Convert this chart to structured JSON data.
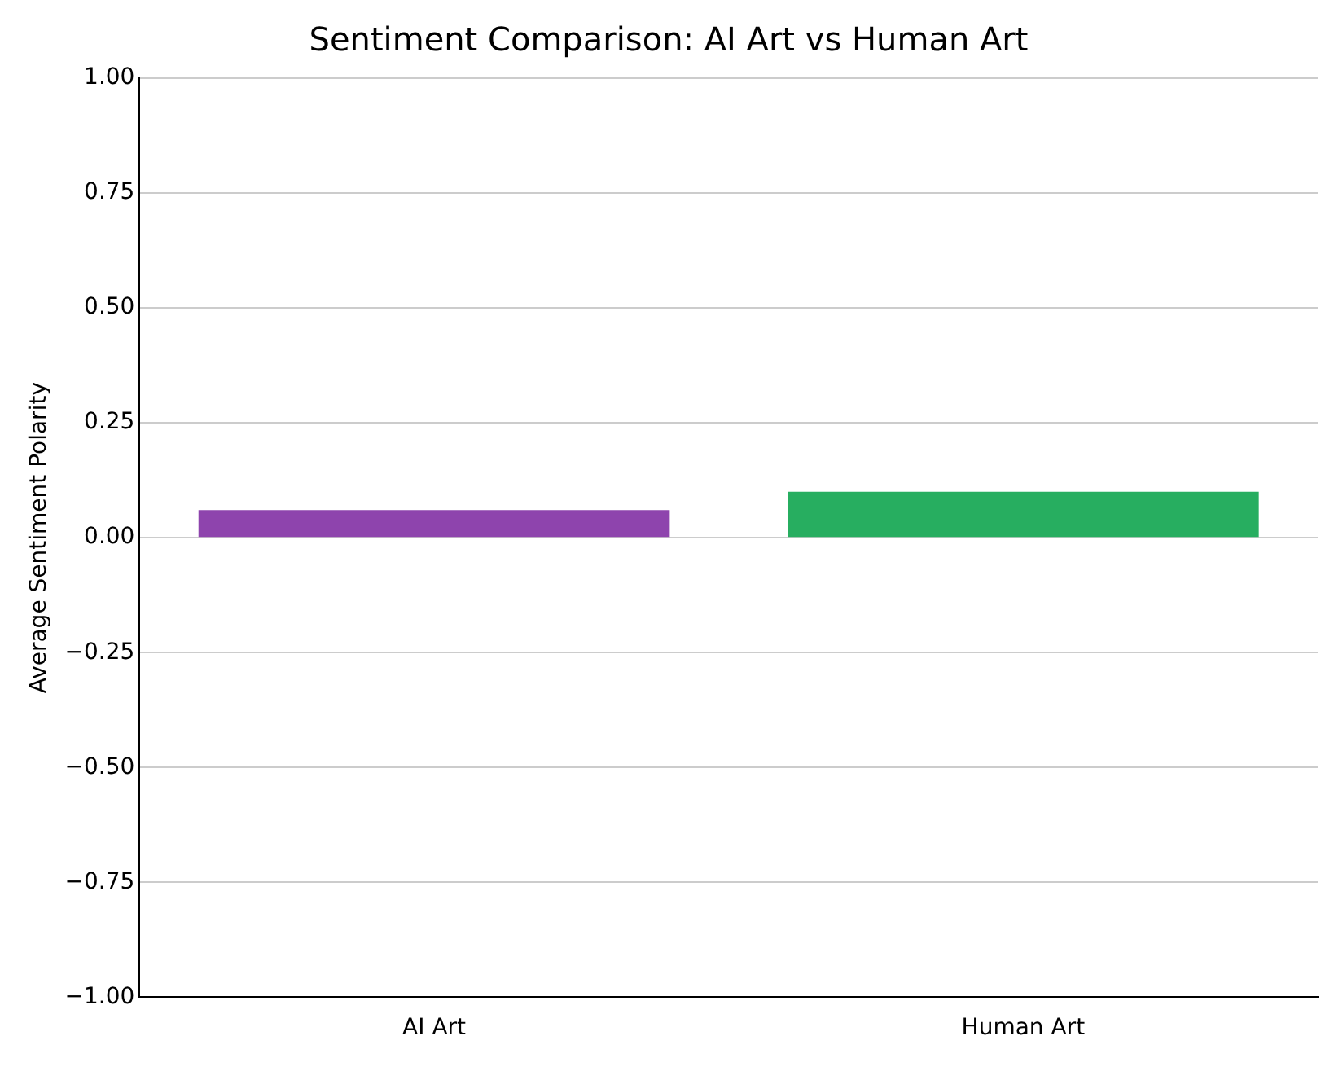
{
  "chart_data": {
    "type": "bar",
    "title": "Sentiment Comparison: AI Art vs Human Art",
    "ylabel": "Average Sentiment Polarity",
    "categories": [
      "AI Art",
      "Human Art"
    ],
    "values": [
      0.06,
      0.1
    ],
    "colors": [
      "#8e44ad",
      "#27ae60"
    ],
    "ylim": [
      -1,
      1
    ],
    "yticks": [
      {
        "value": -1,
        "label": "−1.00"
      },
      {
        "value": -0.75,
        "label": "−0.75"
      },
      {
        "value": -0.5,
        "label": "−0.50"
      },
      {
        "value": -0.25,
        "label": "−0.25"
      },
      {
        "value": 0,
        "label": "0.00"
      },
      {
        "value": 0.25,
        "label": "0.25"
      },
      {
        "value": 0.5,
        "label": "0.50"
      },
      {
        "value": 0.75,
        "label": "0.75"
      },
      {
        "value": 1,
        "label": "1.00"
      }
    ],
    "grid": "y"
  }
}
